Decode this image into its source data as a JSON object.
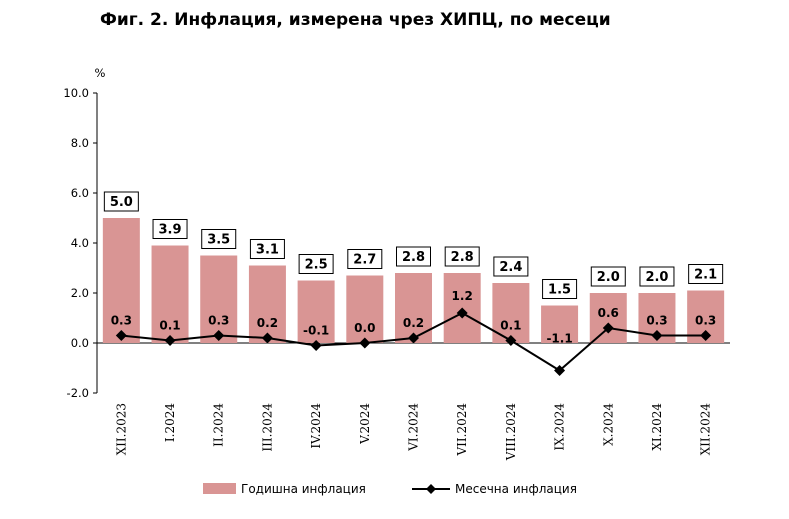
{
  "title": "Фиг. 2. Инфлация, измерена чрез ХИПЦ, по месеци",
  "chart_data": {
    "type": "bar",
    "title": "Фиг. 2. Инфлация, измерена чрез ХИПЦ, по месеци",
    "ylabel": "%",
    "ylim": [
      -2.0,
      10.0
    ],
    "yticks": [
      "10.0",
      "8.0",
      "6.0",
      "4.0",
      "2.0",
      "0.0",
      "-2.0"
    ],
    "categories": [
      "XII.2023",
      "I.2024",
      "II.2024",
      "III.2024",
      "IV.2024",
      "V.2024",
      "VI.2024",
      "VII.2024",
      "VIII.2024",
      "IX.2024",
      "X.2024",
      "XI.2024",
      "XII.2024"
    ],
    "series": [
      {
        "name": "Годишна инфлация",
        "type": "bar",
        "color": "#d99594",
        "values": [
          5.0,
          3.9,
          3.5,
          3.1,
          2.5,
          2.7,
          2.8,
          2.8,
          2.4,
          1.5,
          2.0,
          2.0,
          2.1
        ],
        "labels": [
          "5.0",
          "3.9",
          "3.5",
          "3.1",
          "2.5",
          "2.7",
          "2.8",
          "2.8",
          "2.4",
          "1.5",
          "2.0",
          "2.0",
          "2.1"
        ]
      },
      {
        "name": "Месечна инфлация",
        "type": "line",
        "color": "#000000",
        "marker": "diamond",
        "values": [
          0.3,
          0.1,
          0.3,
          0.2,
          -0.1,
          0.0,
          0.2,
          1.2,
          0.1,
          -1.1,
          0.6,
          0.3,
          0.3
        ],
        "labels": [
          "0.3",
          "0.1",
          "0.3",
          "0.2",
          "-0.1",
          "0.0",
          "0.2",
          "1.2",
          "0.1",
          "-1.1",
          "0.6",
          "0.3",
          "0.3"
        ]
      }
    ],
    "grid": false,
    "legend": "bottom"
  }
}
